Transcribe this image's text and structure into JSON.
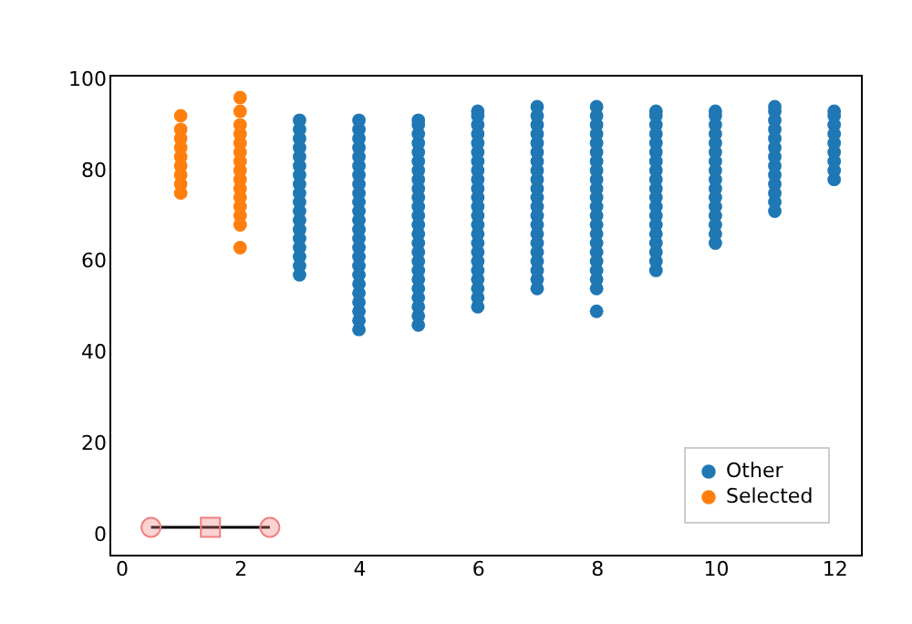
{
  "chart_data": {
    "type": "scatter",
    "xlim": [
      -0.2,
      12.45
    ],
    "ylim": [
      -4.5,
      101
    ],
    "xticks": [
      0,
      2,
      4,
      6,
      8,
      10,
      12
    ],
    "yticks": [
      0,
      20,
      40,
      60,
      80,
      100
    ],
    "grid": false,
    "legend": "bottom right",
    "marker": "circle",
    "series": [
      {
        "name": "Other",
        "color": "#1f77b4",
        "x": [
          3,
          3,
          3,
          3,
          3,
          3,
          3,
          3,
          3,
          3,
          3,
          3,
          3,
          3,
          3,
          3,
          3,
          3,
          4,
          4,
          4,
          4,
          4,
          4,
          4,
          4,
          4,
          4,
          4,
          4,
          4,
          4,
          4,
          4,
          4,
          4,
          4,
          4,
          4,
          4,
          4,
          4,
          5,
          5,
          5,
          5,
          5,
          5,
          5,
          5,
          5,
          5,
          5,
          5,
          5,
          5,
          5,
          5,
          5,
          5,
          5,
          5,
          5,
          5,
          5,
          5,
          6,
          6,
          6,
          6,
          6,
          6,
          6,
          6,
          6,
          6,
          6,
          6,
          6,
          6,
          6,
          6,
          6,
          6,
          6,
          6,
          6,
          6,
          6,
          7,
          7,
          7,
          7,
          7,
          7,
          7,
          7,
          7,
          7,
          7,
          7,
          7,
          7,
          7,
          7,
          7,
          7,
          7,
          7,
          7,
          8,
          8,
          8,
          8,
          8,
          8,
          8,
          8,
          8,
          8,
          8,
          8,
          8,
          8,
          8,
          8,
          8,
          8,
          8,
          8,
          8,
          8,
          9,
          9,
          9,
          9,
          9,
          9,
          9,
          9,
          9,
          9,
          9,
          9,
          9,
          9,
          9,
          9,
          9,
          9,
          9,
          10,
          10,
          10,
          10,
          10,
          10,
          10,
          10,
          10,
          10,
          10,
          10,
          10,
          10,
          10,
          10,
          11,
          11,
          11,
          11,
          11,
          11,
          11,
          11,
          11,
          11,
          11,
          11,
          11,
          12,
          12,
          12,
          12,
          12,
          12,
          12,
          12,
          12
        ],
        "values": [
          57,
          59,
          61,
          63,
          65,
          67,
          69,
          71,
          73,
          75,
          77,
          79,
          81,
          83,
          85,
          87,
          89,
          91,
          45,
          47,
          49,
          51,
          53,
          55,
          57,
          59,
          61,
          63,
          65,
          67,
          69,
          71,
          73,
          75,
          77,
          79,
          81,
          83,
          85,
          87,
          89,
          91,
          46,
          48,
          50,
          52,
          54,
          56,
          58,
          60,
          62,
          64,
          66,
          68,
          70,
          72,
          74,
          76,
          78,
          80,
          82,
          84,
          86,
          88,
          90,
          91,
          50,
          52,
          54,
          56,
          58,
          60,
          62,
          64,
          66,
          68,
          70,
          72,
          74,
          76,
          78,
          80,
          82,
          84,
          86,
          88,
          90,
          92,
          93,
          54,
          56,
          58,
          60,
          62,
          64,
          66,
          68,
          70,
          72,
          74,
          76,
          78,
          80,
          82,
          84,
          86,
          88,
          90,
          92,
          94,
          49,
          54,
          56,
          58,
          60,
          62,
          64,
          66,
          68,
          70,
          72,
          74,
          76,
          78,
          80,
          82,
          84,
          86,
          88,
          90,
          92,
          94,
          58,
          60,
          62,
          64,
          66,
          68,
          70,
          72,
          74,
          76,
          78,
          80,
          82,
          84,
          86,
          88,
          90,
          92,
          93,
          64,
          66,
          68,
          70,
          72,
          74,
          76,
          78,
          80,
          82,
          84,
          86,
          88,
          90,
          92,
          93,
          71,
          73,
          75,
          77,
          79,
          81,
          83,
          85,
          87,
          89,
          91,
          93,
          94,
          78,
          80,
          82,
          84,
          86,
          88,
          90,
          92,
          93
        ]
      },
      {
        "name": "Selected",
        "color": "#ff7f0e",
        "x": [
          1,
          1,
          1,
          1,
          1,
          1,
          1,
          1,
          1,
          2,
          2,
          2,
          2,
          2,
          2,
          2,
          2,
          2,
          2,
          2,
          2,
          2,
          2,
          2
        ],
        "values": [
          75,
          77,
          79,
          81,
          83,
          85,
          87,
          89,
          92,
          63,
          68,
          70,
          72,
          74,
          76,
          78,
          80,
          82,
          84,
          86,
          88,
          90,
          93,
          96
        ]
      },
      {
        "type": "line",
        "color": "#000000",
        "marker": "none",
        "x": [
          0.5,
          2.5
        ],
        "values": [
          1.5,
          1.5
        ]
      },
      {
        "color": "#f08080",
        "marker": "circle",
        "x": [
          0.5,
          2.5
        ],
        "values": [
          1.5,
          1.5
        ]
      },
      {
        "color": "#f08080",
        "marker": "square",
        "x": [
          1.5
        ],
        "values": [
          1.5
        ]
      }
    ]
  }
}
